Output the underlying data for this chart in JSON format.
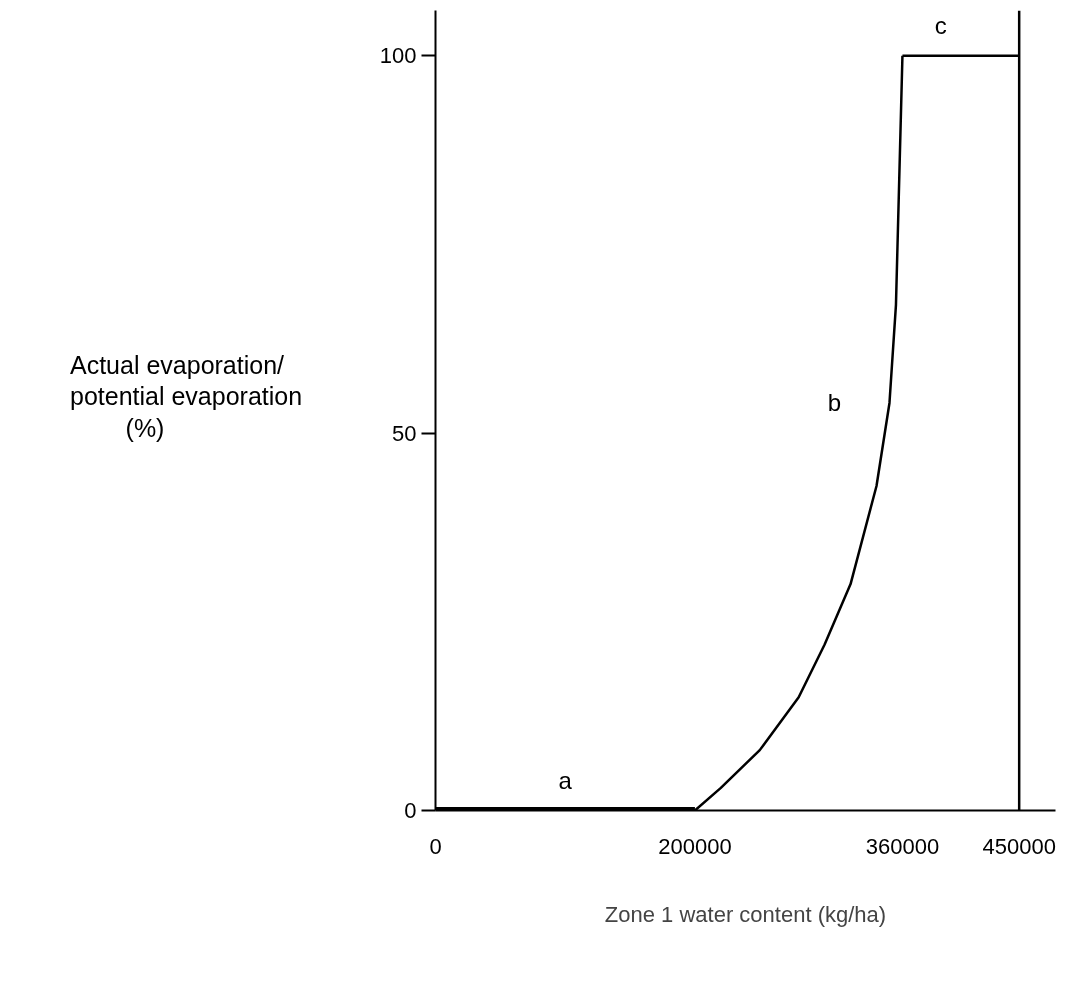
{
  "chart_data": {
    "type": "line",
    "xlabel": "Zone 1 water content (kg/ha)",
    "ylabel": "Actual evaporation/\npotential evaporation\n(%)",
    "series": [
      {
        "color": "#000000",
        "x": [
          0,
          200000
        ],
        "values": [
          0,
          0
        ]
      },
      {
        "color": "#000000",
        "x": [
          200000,
          220000,
          250000,
          280000,
          300000,
          320000,
          340000,
          350000,
          355000,
          360000
        ],
        "values": [
          0,
          3,
          8,
          15,
          22,
          30,
          43,
          54,
          67,
          100
        ]
      },
      {
        "color": "#000000",
        "x": [
          360000,
          450000
        ],
        "values": [
          100,
          100
        ]
      }
    ],
    "ref_lines": [
      {
        "axis": "x",
        "value": 450000,
        "label": null,
        "color": "#000000"
      }
    ],
    "annotations": [
      "a",
      "b",
      "c"
    ],
    "xlim": [
      0,
      478000
    ],
    "ylim": [
      0,
      106
    ],
    "xticks": [
      0,
      200000,
      360000,
      450000
    ],
    "yticks": [
      0,
      50,
      100
    ],
    "grid": false,
    "marker": "none",
    "line_style": "solid"
  }
}
